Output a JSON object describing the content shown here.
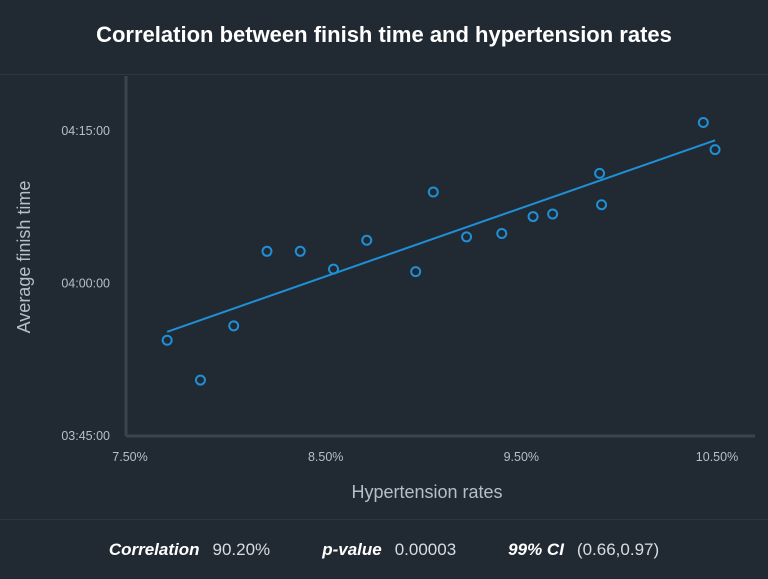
{
  "title": "Correlation between finish time and hypertension rates",
  "colors": {
    "background": "#212a33",
    "series": "#1f8fd6",
    "axis": "#3a444e"
  },
  "chart_data": {
    "type": "scatter",
    "title": "Correlation between finish time and hypertension rates",
    "xlabel": "Hypertension rates",
    "ylabel": "Average finish time",
    "xlim": [
      7.5,
      10.5
    ],
    "ylim": [
      "03:45:00",
      "04:15:00"
    ],
    "x_ticks": [
      "7.50%",
      "8.50%",
      "9.50%",
      "10.50%"
    ],
    "y_ticks": [
      "03:45:00",
      "04:00:00",
      "04:15:00"
    ],
    "grid": false,
    "points": [
      {
        "x": 7.69,
        "y": "03:54:25"
      },
      {
        "x": 7.86,
        "y": "03:50:30"
      },
      {
        "x": 8.03,
        "y": "03:55:50"
      },
      {
        "x": 8.2,
        "y": "04:03:10"
      },
      {
        "x": 8.37,
        "y": "04:03:10"
      },
      {
        "x": 8.54,
        "y": "04:01:25"
      },
      {
        "x": 8.71,
        "y": "04:04:15"
      },
      {
        "x": 8.96,
        "y": "04:01:10"
      },
      {
        "x": 9.05,
        "y": "04:09:00"
      },
      {
        "x": 9.22,
        "y": "04:04:35"
      },
      {
        "x": 9.4,
        "y": "04:04:55"
      },
      {
        "x": 9.56,
        "y": "04:06:35"
      },
      {
        "x": 9.66,
        "y": "04:06:50"
      },
      {
        "x": 9.9,
        "y": "04:10:50"
      },
      {
        "x": 9.91,
        "y": "04:07:45"
      },
      {
        "x": 10.43,
        "y": "04:15:50"
      },
      {
        "x": 10.49,
        "y": "04:13:10"
      }
    ],
    "trendline": [
      {
        "x": 7.69,
        "y": "03:55:15"
      },
      {
        "x": 10.49,
        "y": "04:14:05"
      }
    ]
  },
  "stats": {
    "correlation_label": "Correlation",
    "correlation_value": "90.20%",
    "pvalue_label": "p-value",
    "pvalue_value": "0.00003",
    "ci_label": "99% CI",
    "ci_value": "(0.66,0.97)"
  }
}
